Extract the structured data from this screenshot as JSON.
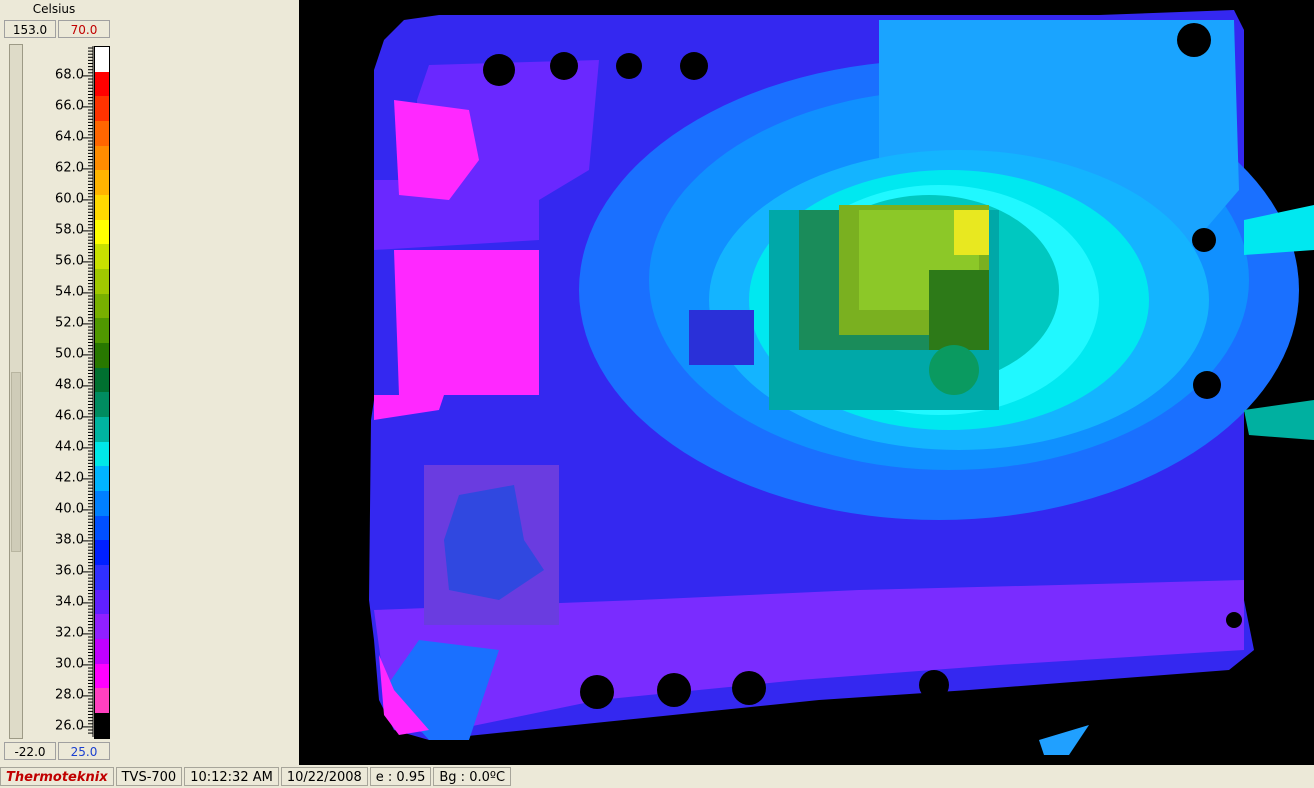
{
  "scale": {
    "unit_label": "Celsius",
    "max_left": "153.0",
    "max_right": "70.0",
    "min_left": "-22.0",
    "min_right": "25.0",
    "tick_labels": [
      "68.0",
      "66.0",
      "64.0",
      "62.0",
      "60.0",
      "58.0",
      "56.0",
      "54.0",
      "52.0",
      "50.0",
      "48.0",
      "46.0",
      "44.0",
      "42.0",
      "40.0",
      "38.0",
      "36.0",
      "34.0",
      "32.0",
      "30.0",
      "28.0",
      "26.0"
    ],
    "palette": [
      "#ffffff",
      "#ff0000",
      "#ff3300",
      "#ff6600",
      "#ff8c00",
      "#ffb400",
      "#ffd800",
      "#ffff00",
      "#c8e000",
      "#a0c800",
      "#78b000",
      "#509800",
      "#287800",
      "#007030",
      "#008c60",
      "#00b4a0",
      "#00e8e8",
      "#00b4ff",
      "#0080ff",
      "#0050ff",
      "#0020ff",
      "#3030ff",
      "#6020ff",
      "#9020ff",
      "#c000ff",
      "#ff00ff",
      "#ff40c0",
      "#000000"
    ]
  },
  "status_bar": {
    "brand": "Thermoteknix",
    "camera": "TVS-700",
    "time": "10:12:32 AM",
    "date": "10/22/2008",
    "emissivity": "e : 0.95",
    "background": "Bg : 0.0ºC"
  }
}
